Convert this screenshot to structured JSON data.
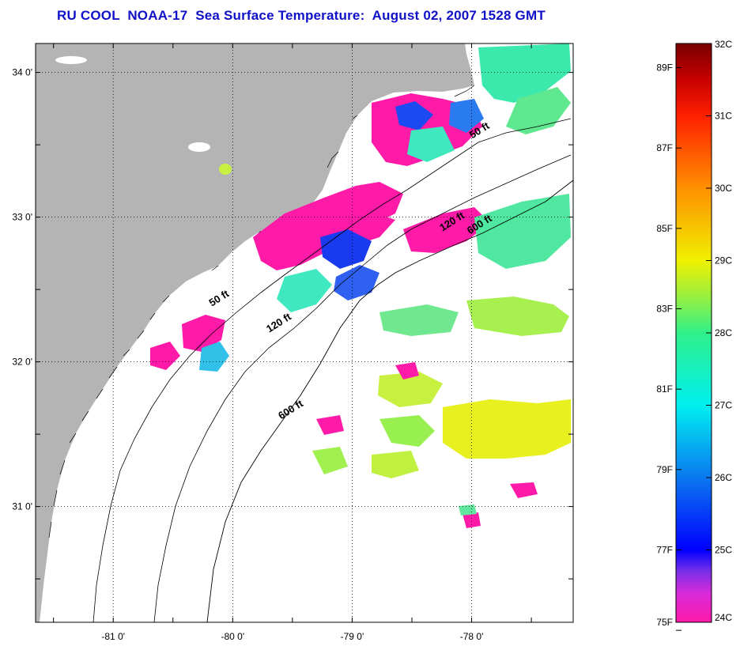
{
  "title": "RU COOL  NOAA-17  Sea Surface Temperature:  August 02, 2007 1528 GMT",
  "map": {
    "lat_labels": [
      "34 0'",
      "33 0'",
      "32 0'",
      "31 0'"
    ],
    "lat_values": [
      34,
      33,
      32,
      31
    ],
    "lon_labels": [
      "-81 0'",
      "-80 0'",
      "-79 0'",
      "-78 0'"
    ],
    "lon_values": [
      -81,
      -80,
      -79,
      -78
    ],
    "lon_range": [
      -81.65,
      -77.15
    ],
    "lat_range": [
      30.2,
      34.2
    ],
    "contour_labels": [
      {
        "text": "50 ft",
        "lon": -77.92,
        "lat": 33.58
      },
      {
        "text": "120 ft",
        "lon": -78.15,
        "lat": 32.95
      },
      {
        "text": "600 ft",
        "lon": -77.92,
        "lat": 32.93
      },
      {
        "text": "50 ft",
        "lon": -80.1,
        "lat": 32.42
      },
      {
        "text": "120 ft",
        "lon": -79.6,
        "lat": 32.25
      },
      {
        "text": "600 ft",
        "lon": -79.5,
        "lat": 31.65
      }
    ],
    "colors": {
      "land": "#b4b4b4",
      "no_data": "#ffffff",
      "grid": "#000000"
    }
  },
  "colorbar": {
    "celsius_labels": [
      "32C",
      "31C",
      "30C",
      "29C",
      "28C",
      "27C",
      "26C",
      "25C",
      "24C"
    ],
    "celsius_values": [
      32,
      31,
      30,
      29,
      28,
      27,
      26,
      25,
      24
    ],
    "fahrenheit_labels": [
      "89F",
      "87F",
      "85F",
      "83F",
      "81F",
      "79F",
      "77F",
      "75F"
    ],
    "fahrenheit_values": [
      89,
      87,
      85,
      83,
      81,
      79,
      77,
      75
    ],
    "range_c": [
      24,
      32
    ],
    "stops": [
      {
        "c": 24.0,
        "color": "#ff1aa8"
      },
      {
        "c": 24.4,
        "color": "#d82ad8"
      },
      {
        "c": 24.7,
        "color": "#7a30e8"
      },
      {
        "c": 25.0,
        "color": "#0000ff"
      },
      {
        "c": 26.0,
        "color": "#0a78f0"
      },
      {
        "c": 27.0,
        "color": "#00f0f0"
      },
      {
        "c": 28.0,
        "color": "#30f08a"
      },
      {
        "c": 28.5,
        "color": "#98f040"
      },
      {
        "c": 29.0,
        "color": "#f0f000"
      },
      {
        "c": 30.0,
        "color": "#ff9000"
      },
      {
        "c": 31.0,
        "color": "#ff2000"
      },
      {
        "c": 31.5,
        "color": "#c80000"
      },
      {
        "c": 32.0,
        "color": "#780000"
      }
    ]
  }
}
